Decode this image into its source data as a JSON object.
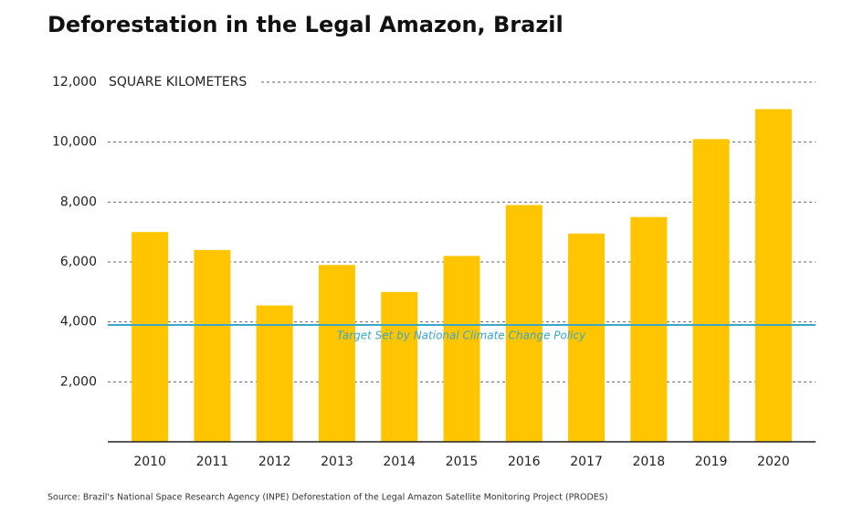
{
  "chart_data": {
    "type": "bar",
    "title": "Deforestation in the Legal Amazon, Brazil",
    "y_axis_label": "SQUARE KILOMETERS",
    "source": "Source: Brazil's National Space Research Agency (INPE) Deforestation of the Legal Amazon Satellite Monitoring Project (PRODES)",
    "categories": [
      "2010",
      "2011",
      "2012",
      "2013",
      "2014",
      "2015",
      "2016",
      "2017",
      "2018",
      "2019",
      "2020"
    ],
    "values": [
      7000,
      6400,
      4550,
      5900,
      5000,
      6200,
      7900,
      6950,
      7500,
      10100,
      11100
    ],
    "color": "#ffc600",
    "ylim": [
      0,
      12000
    ],
    "yticks": [
      {
        "value": 2000,
        "label": "2,000"
      },
      {
        "value": 4000,
        "label": "4,000"
      },
      {
        "value": 6000,
        "label": "6,000"
      },
      {
        "value": 8000,
        "label": "8,000"
      },
      {
        "value": 10000,
        "label": "10,000"
      },
      {
        "value": 12000,
        "label": "12,000"
      }
    ],
    "grid": true,
    "target": {
      "value": 3900,
      "label": "Target Set by National Climate Change Policy",
      "color": "#3aa6c8"
    }
  }
}
